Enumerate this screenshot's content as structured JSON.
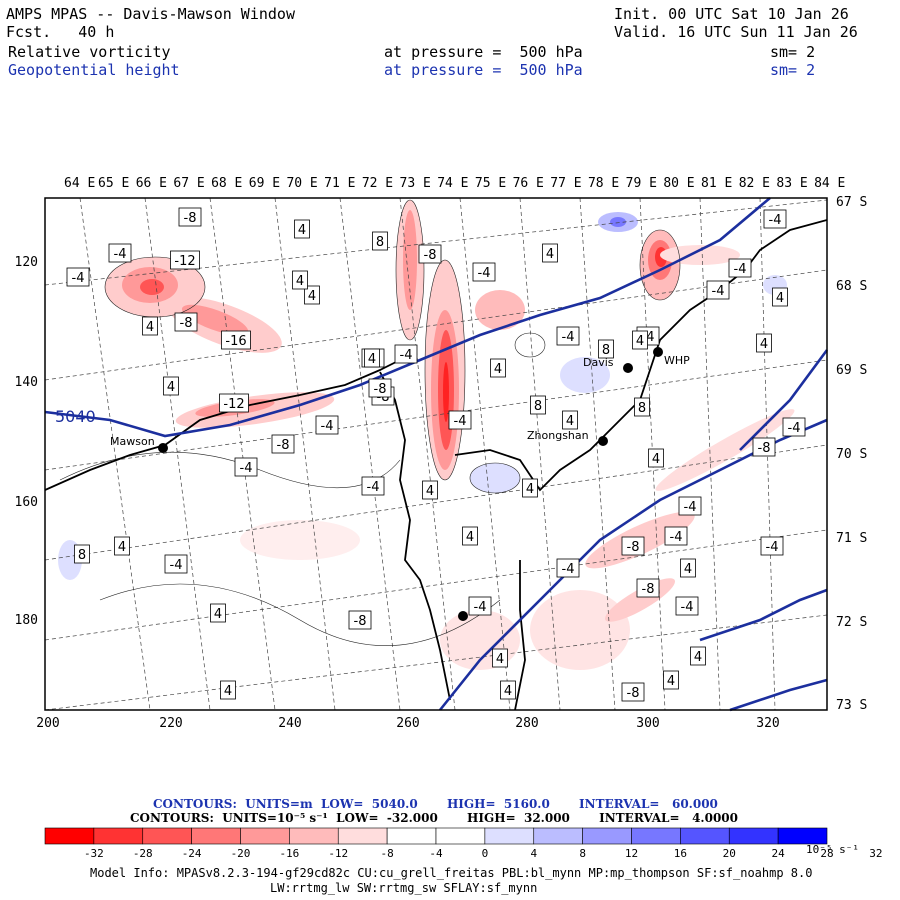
{
  "header": {
    "title": "AMPS MPAS -- Davis-Mawson Window",
    "fcst": "Fcst.   40 h",
    "init": "Init. 00 UTC Sat 10 Jan 26",
    "valid": "Valid. 16 UTC Sun 11 Jan 26",
    "field1": {
      "name": "Relative vorticity",
      "level": "at pressure =  500 hPa",
      "sm": "sm= 2"
    },
    "field2": {
      "name": "Geopotential height",
      "level": "at pressure =  500 hPa",
      "sm": "sm= 2"
    }
  },
  "longitudes": [
    "64 E",
    "65 E",
    "66 E",
    "67 E",
    "68 E",
    "69 E",
    "70 E",
    "71 E",
    "72 E",
    "73 E",
    "74 E",
    "75 E",
    "76 E",
    "77 E",
    "78 E",
    "79 E",
    "80 E",
    "81 E",
    "82 E",
    "83 E",
    "84 E"
  ],
  "latitudes": [
    "67 S",
    "68 S",
    "69 S",
    "70 S",
    "71 S",
    "72 S",
    "73 S"
  ],
  "y_ticks": [
    "120",
    "140",
    "160",
    "180"
  ],
  "x_ticks": [
    "200",
    "220",
    "240",
    "260",
    "280",
    "300",
    "320"
  ],
  "stations": [
    "Mawson",
    "Davis",
    "WHP",
    "Zhongshan"
  ],
  "height_label": "5040",
  "contour_labels": [
    "-8",
    "-4",
    "-12",
    "-4",
    "4",
    "8",
    "-8",
    "-4",
    "4",
    "-4",
    "-4",
    "-8",
    "4",
    "4",
    "-16",
    "4",
    "4",
    "-4",
    "-4",
    "4",
    "-4",
    "-4",
    "8",
    "4",
    "-12",
    "-8",
    "8",
    "8",
    "-4",
    "-4",
    "-8",
    "4",
    "-4",
    "-4",
    "4",
    "4",
    "-8",
    "-4",
    "4",
    "-4",
    "8",
    "-8",
    "-4",
    "-4",
    "-4",
    "4",
    "4",
    "-8",
    "-4",
    "4",
    "4",
    "-8",
    "-4",
    "4",
    "4",
    "4",
    "4",
    "4",
    "-4",
    "-8",
    "-4",
    "4",
    "4",
    "-8",
    "4"
  ],
  "colors": {
    "blue_text": "#1c33b0",
    "height_contour": "#1c2f9e"
  },
  "legend": {
    "line1": "CONTOURS:  UNITS=m  LOW=  5040.0       HIGH=  5160.0       INTERVAL=   60.000",
    "line2": "CONTOURS:  UNITS=10⁻⁵ s⁻¹  LOW=  -32.000       HIGH=  32.000       INTERVAL=   4.0000",
    "labels": [
      "-32",
      "-28",
      "-24",
      "-20",
      "-16",
      "-12",
      "-8",
      "-4",
      "0",
      "4",
      "8",
      "12",
      "16",
      "20",
      "24",
      "28",
      "32"
    ],
    "unit": "10⁻⁵ s⁻¹",
    "colors": [
      "#ff0000",
      "#ff3333",
      "#ff5555",
      "#ff7777",
      "#ff9999",
      "#ffbbbb",
      "#ffdddd",
      "#ffffff",
      "#ffffff",
      "#dddfff",
      "#bbbdff",
      "#9999ff",
      "#7777ff",
      "#5555ff",
      "#3333ff",
      "#0000ff"
    ]
  },
  "footer": {
    "line1": "Model Info: MPASv8.2.3-194-gf29cd82c CU:cu_grell_freitas PBL:bl_mynn MP:mp_thompson SF:sf_noahmp 8.0",
    "line2": "LW:rrtmg_lw SW:rrtmg_sw SFLAY:sf_mynn"
  }
}
